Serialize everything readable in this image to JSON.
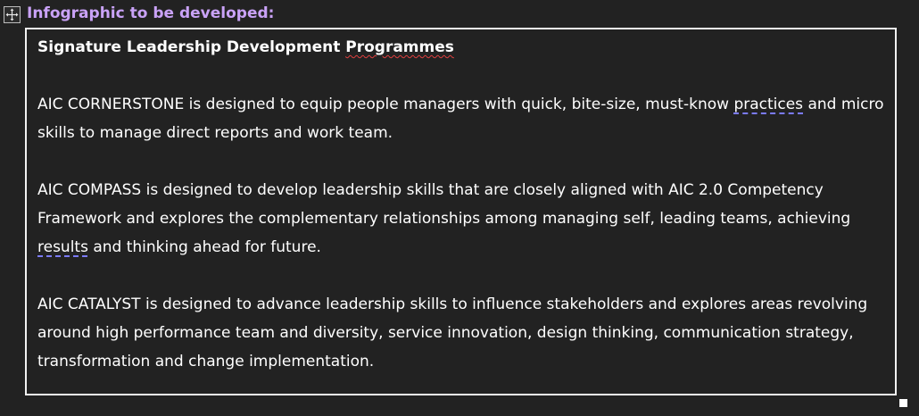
{
  "heading": "Infographic to be developed:",
  "title": {
    "before": "Signature Leadership Development ",
    "flagged": "Programmes"
  },
  "paragraphs": [
    {
      "before": "AIC CORNERSTONE is designed to equip people managers with quick, bite-size, must-know ",
      "flagged": "practices",
      "after": " and micro skills to manage direct reports and work team."
    },
    {
      "before": "AIC COMPASS is designed to develop leadership skills that are closely aligned with AIC 2.0 Competency Framework and explores the complementary relationships among managing self, leading teams, achieving ",
      "flagged": "results",
      "after": " and thinking ahead for future."
    },
    {
      "text": "AIC CATALYST is designed to advance leadership skills to influence stakeholders and explores areas revolving around high performance team and diversity, service innovation, design thinking, communication strategy, transformation and change implementation."
    }
  ],
  "icons": {
    "move": "move-arrows-icon",
    "resize": "resize-handle-icon"
  },
  "colors": {
    "background": "#222222",
    "heading": "#c9a2f7",
    "text": "#ffffff",
    "border": "#f2f2f2",
    "spelling_underline": "#e04040",
    "grammar_underline": "#7b7bff"
  }
}
